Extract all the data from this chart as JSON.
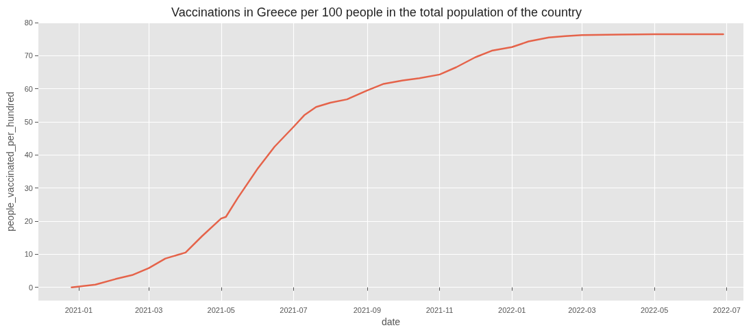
{
  "chart_data": {
    "type": "line",
    "title": "Vaccinations in Greece per 100 people in the total population of the country",
    "xlabel": "date",
    "ylabel": "people_vaccinated_per_hundred",
    "x": [
      "2020-12-26",
      "2021-01-15",
      "2021-02-01",
      "2021-02-15",
      "2021-03-01",
      "2021-03-15",
      "2021-04-01",
      "2021-04-15",
      "2021-05-01",
      "2021-05-05",
      "2021-05-15",
      "2021-06-01",
      "2021-06-15",
      "2021-07-01",
      "2021-07-10",
      "2021-07-20",
      "2021-08-01",
      "2021-08-15",
      "2021-09-01",
      "2021-09-15",
      "2021-10-01",
      "2021-10-15",
      "2021-11-01",
      "2021-11-15",
      "2021-12-01",
      "2021-12-15",
      "2022-01-01",
      "2022-01-15",
      "2022-02-01",
      "2022-02-15",
      "2022-03-01",
      "2022-04-01",
      "2022-05-01",
      "2022-06-28"
    ],
    "series": [
      {
        "color": "#e5634a",
        "values": [
          0,
          0.8,
          2.5,
          3.7,
          5.8,
          8.7,
          10.5,
          15.5,
          20.8,
          21.3,
          27,
          36,
          42.5,
          48.5,
          52,
          54.5,
          55.8,
          56.8,
          59.5,
          61.5,
          62.5,
          63.2,
          64.3,
          66.5,
          69.5,
          71.5,
          72.6,
          74.3,
          75.5,
          75.9,
          76.2,
          76.4,
          76.5,
          76.5
        ]
      }
    ],
    "xlim": [
      "2020-11-28",
      "2022-07-15"
    ],
    "xticks": [
      "2021-01",
      "2021-03",
      "2021-05",
      "2021-07",
      "2021-09",
      "2021-11",
      "2022-01",
      "2022-03",
      "2022-05",
      "2022-07"
    ],
    "ylim": [
      -4,
      80
    ],
    "yticks": [
      0,
      10,
      20,
      30,
      40,
      50,
      60,
      70,
      80
    ],
    "grid": true,
    "marker": "none",
    "line_style": "solid"
  }
}
